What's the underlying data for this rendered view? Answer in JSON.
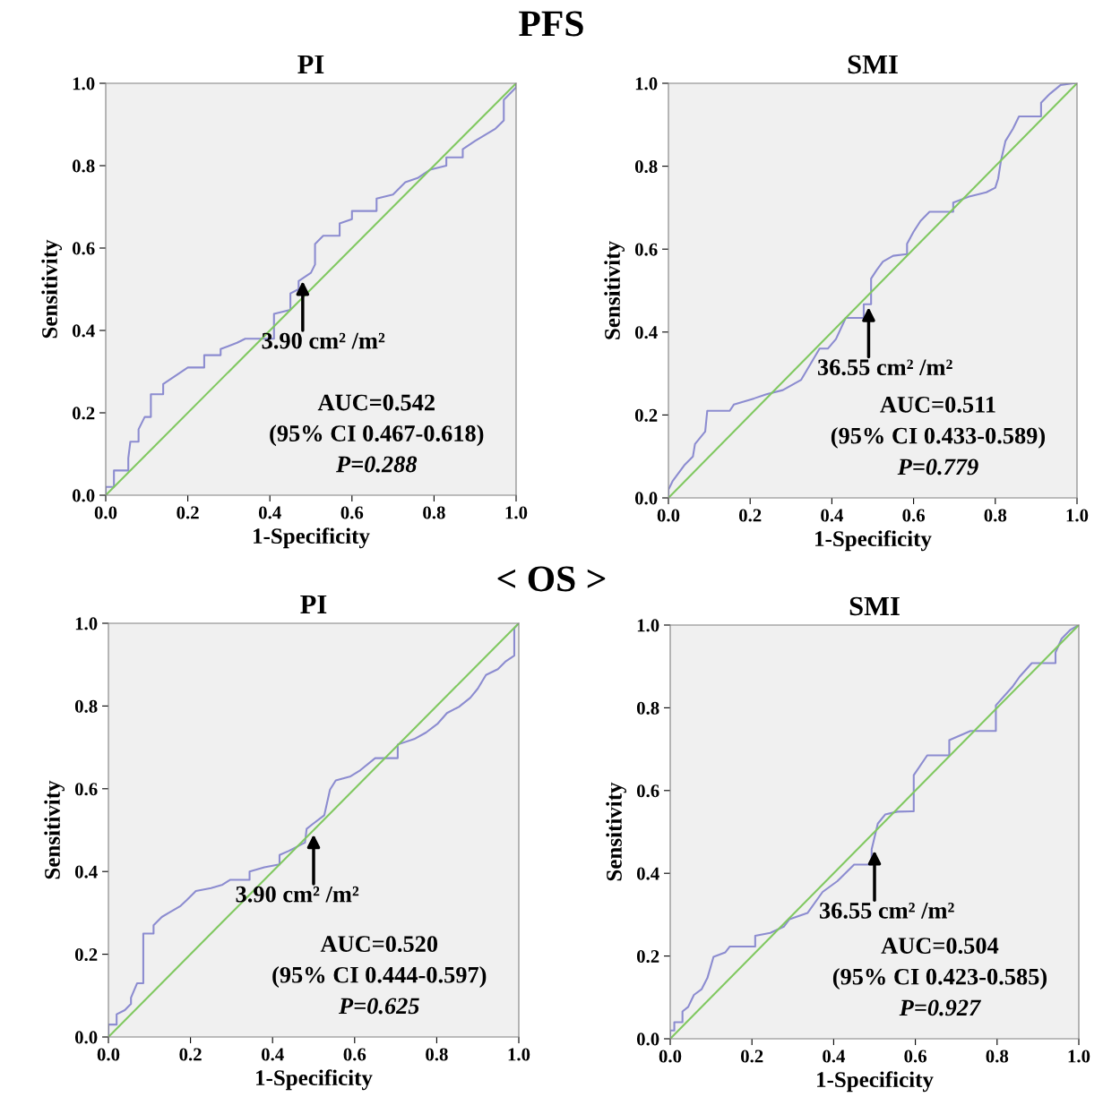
{
  "chart_data": [
    {
      "type": "other",
      "title": "PFS"
    },
    {
      "type": "line",
      "title": "PI",
      "xlabel": "1-Specificity",
      "ylabel": "Sensitivity",
      "xlim": [
        0,
        1
      ],
      "ylim": [
        0,
        1
      ],
      "xticks": [
        {
          "value": 0,
          "label": "0.0"
        },
        {
          "value": 0.2,
          "label": "0.2"
        },
        {
          "value": 0.4,
          "label": "0.4"
        },
        {
          "value": 0.6,
          "label": "0.6"
        },
        {
          "value": 0.8,
          "label": "0.8"
        },
        {
          "value": 1,
          "label": "1.0"
        }
      ],
      "yticks": [
        {
          "value": 0,
          "label": "0.0"
        },
        {
          "value": 0.2,
          "label": "0.2"
        },
        {
          "value": 0.4,
          "label": "0.4"
        },
        {
          "value": 0.6,
          "label": "0.6"
        },
        {
          "value": 0.8,
          "label": "0.8"
        },
        {
          "value": 1,
          "label": "1.0"
        }
      ],
      "grid": false,
      "legend": false,
      "series": [
        {
          "color": "#8c8cd0",
          "x": [
            0,
            0,
            0.02,
            0.02,
            0.055,
            0.055,
            0.06,
            0.08,
            0.08,
            0.095,
            0.11,
            0.11,
            0.14,
            0.14,
            0.17,
            0.2,
            0.24,
            0.24,
            0.28,
            0.28,
            0.32,
            0.34,
            0.41,
            0.41,
            0.45,
            0.45,
            0.47,
            0.47,
            0.5,
            0.51,
            0.51,
            0.53,
            0.57,
            0.57,
            0.6,
            0.6,
            0.66,
            0.66,
            0.7,
            0.73,
            0.76,
            0.79,
            0.83,
            0.83,
            0.87,
            0.87,
            0.9,
            0.95,
            0.97,
            0.97,
            1,
            1
          ],
          "values": [
            0,
            0.02,
            0.02,
            0.06,
            0.06,
            0.09,
            0.13,
            0.13,
            0.16,
            0.19,
            0.19,
            0.245,
            0.245,
            0.27,
            0.29,
            0.31,
            0.31,
            0.34,
            0.34,
            0.355,
            0.37,
            0.38,
            0.38,
            0.44,
            0.45,
            0.49,
            0.5,
            0.52,
            0.54,
            0.56,
            0.61,
            0.63,
            0.63,
            0.66,
            0.67,
            0.69,
            0.69,
            0.72,
            0.73,
            0.76,
            0.77,
            0.79,
            0.8,
            0.82,
            0.82,
            0.84,
            0.86,
            0.89,
            0.91,
            0.96,
            0.99,
            1
          ]
        },
        {
          "color": "#80c860",
          "x": [
            0,
            1
          ],
          "values": [
            0,
            1
          ]
        }
      ],
      "annotations": [
        "AUC=0.542",
        "(95% CI 0.467-0.618)",
        "P=0.288",
        {
          "text": "3.90 cm² /m²",
          "x": 0.48,
          "y": 0.52
        }
      ]
    },
    {
      "type": "line",
      "title": "SMI",
      "xlabel": "1-Specificity",
      "ylabel": "Sensitivity",
      "xlim": [
        0,
        1
      ],
      "ylim": [
        0,
        1
      ],
      "xticks": [
        {
          "value": 0,
          "label": "0.0"
        },
        {
          "value": 0.2,
          "label": "0.2"
        },
        {
          "value": 0.4,
          "label": "0.4"
        },
        {
          "value": 0.6,
          "label": "0.6"
        },
        {
          "value": 0.8,
          "label": "0.8"
        },
        {
          "value": 1,
          "label": "1.0"
        }
      ],
      "yticks": [
        {
          "value": 0,
          "label": "0.0"
        },
        {
          "value": 0.2,
          "label": "0.2"
        },
        {
          "value": 0.4,
          "label": "0.4"
        },
        {
          "value": 0.6,
          "label": "0.6"
        },
        {
          "value": 0.8,
          "label": "0.8"
        },
        {
          "value": 1,
          "label": "1.0"
        }
      ],
      "grid": false,
      "legend": false,
      "series": [
        {
          "color": "#8c8cd0",
          "x": [
            0,
            0,
            0.01,
            0.025,
            0.04,
            0.06,
            0.065,
            0.09,
            0.095,
            0.15,
            0.16,
            0.21,
            0.24,
            0.28,
            0.325,
            0.37,
            0.39,
            0.41,
            0.434,
            0.478,
            0.478,
            0.496,
            0.496,
            0.51,
            0.525,
            0.55,
            0.584,
            0.584,
            0.6,
            0.617,
            0.639,
            0.697,
            0.697,
            0.734,
            0.778,
            0.8,
            0.807,
            0.814,
            0.825,
            0.843,
            0.858,
            0.912,
            0.912,
            0.934,
            0.96,
            0.99,
            1
          ],
          "values": [
            0,
            0.02,
            0.04,
            0.06,
            0.08,
            0.1,
            0.13,
            0.16,
            0.21,
            0.21,
            0.225,
            0.24,
            0.25,
            0.26,
            0.285,
            0.36,
            0.36,
            0.383,
            0.434,
            0.434,
            0.467,
            0.467,
            0.529,
            0.55,
            0.57,
            0.584,
            0.588,
            0.613,
            0.642,
            0.668,
            0.69,
            0.69,
            0.712,
            0.726,
            0.737,
            0.748,
            0.77,
            0.814,
            0.861,
            0.89,
            0.92,
            0.92,
            0.953,
            0.975,
            0.996,
            1,
            1
          ]
        },
        {
          "color": "#80c860",
          "x": [
            0,
            1
          ],
          "values": [
            0,
            1
          ]
        }
      ],
      "annotations": [
        "AUC=0.511",
        "(95% CI 0.433-0.589)",
        "P=0.779",
        {
          "text": "36.55 cm² /m²",
          "x": 0.49,
          "y": 0.46
        }
      ]
    },
    {
      "type": "other",
      "title": "< OS >"
    },
    {
      "type": "line",
      "title": "PI",
      "xlabel": "1-Specificity",
      "ylabel": "Sensitivity",
      "xlim": [
        0,
        1
      ],
      "ylim": [
        0,
        1
      ],
      "xticks": [
        {
          "value": 0,
          "label": "0.0"
        },
        {
          "value": 0.2,
          "label": "0.2"
        },
        {
          "value": 0.4,
          "label": "0.4"
        },
        {
          "value": 0.6,
          "label": "0.6"
        },
        {
          "value": 0.8,
          "label": "0.8"
        },
        {
          "value": 1,
          "label": "1.0"
        }
      ],
      "yticks": [
        {
          "value": 0,
          "label": "0.0"
        },
        {
          "value": 0.2,
          "label": "0.2"
        },
        {
          "value": 0.4,
          "label": "0.4"
        },
        {
          "value": 0.6,
          "label": "0.6"
        },
        {
          "value": 0.8,
          "label": "0.8"
        },
        {
          "value": 1,
          "label": "1.0"
        }
      ],
      "grid": false,
      "legend": false,
      "series": [
        {
          "color": "#8c8cd0",
          "x": [
            0,
            0,
            0.02,
            0.02,
            0.04,
            0.055,
            0.055,
            0.07,
            0.085,
            0.085,
            0.11,
            0.11,
            0.13,
            0.147,
            0.176,
            0.19,
            0.213,
            0.25,
            0.278,
            0.297,
            0.344,
            0.344,
            0.38,
            0.417,
            0.417,
            0.44,
            0.479,
            0.483,
            0.497,
            0.526,
            0.54,
            0.554,
            0.59,
            0.614,
            0.65,
            0.705,
            0.705,
            0.745,
            0.774,
            0.803,
            0.825,
            0.854,
            0.882,
            0.9,
            0.92,
            0.949,
            0.967,
            0.989,
            0.989,
            1
          ],
          "values": [
            0,
            0.03,
            0.03,
            0.055,
            0.065,
            0.08,
            0.095,
            0.13,
            0.13,
            0.25,
            0.25,
            0.27,
            0.29,
            0.3,
            0.317,
            0.33,
            0.353,
            0.36,
            0.368,
            0.38,
            0.38,
            0.4,
            0.41,
            0.417,
            0.44,
            0.45,
            0.47,
            0.503,
            0.514,
            0.536,
            0.598,
            0.62,
            0.63,
            0.645,
            0.674,
            0.674,
            0.707,
            0.72,
            0.736,
            0.758,
            0.783,
            0.798,
            0.82,
            0.842,
            0.875,
            0.889,
            0.907,
            0.922,
            0.988,
            1
          ]
        },
        {
          "color": "#80c860",
          "x": [
            0,
            1
          ],
          "values": [
            0,
            1
          ]
        }
      ],
      "annotations": [
        "AUC=0.520",
        "(95% CI 0.444-0.597)",
        "P=0.625",
        {
          "text": "3.90 cm² /m²",
          "x": 0.5,
          "y": 0.49
        }
      ]
    },
    {
      "type": "line",
      "title": "SMI",
      "xlabel": "1-Specificity",
      "ylabel": "Sensitivity",
      "xlim": [
        0,
        1
      ],
      "ylim": [
        0,
        1
      ],
      "xticks": [
        {
          "value": 0,
          "label": "0.0"
        },
        {
          "value": 0.2,
          "label": "0.2"
        },
        {
          "value": 0.4,
          "label": "0.4"
        },
        {
          "value": 0.6,
          "label": "0.6"
        },
        {
          "value": 0.8,
          "label": "0.8"
        },
        {
          "value": 1,
          "label": "1.0"
        }
      ],
      "yticks": [
        {
          "value": 0,
          "label": "0.0"
        },
        {
          "value": 0.2,
          "label": "0.2"
        },
        {
          "value": 0.4,
          "label": "0.4"
        },
        {
          "value": 0.6,
          "label": "0.6"
        },
        {
          "value": 0.8,
          "label": "0.8"
        },
        {
          "value": 1,
          "label": "1.0"
        }
      ],
      "grid": false,
      "legend": false,
      "series": [
        {
          "color": "#8c8cd0",
          "x": [
            0,
            0,
            0.01,
            0.01,
            0.03,
            0.03,
            0.044,
            0.058,
            0.077,
            0.091,
            0.106,
            0.135,
            0.146,
            0.208,
            0.208,
            0.245,
            0.278,
            0.292,
            0.336,
            0.373,
            0.409,
            0.45,
            0.493,
            0.493,
            0.508,
            0.526,
            0.556,
            0.596,
            0.596,
            0.629,
            0.683,
            0.683,
            0.735,
            0.797,
            0.797,
            0.837,
            0.855,
            0.885,
            0.943,
            0.943,
            0.958,
            0.98,
            1
          ],
          "values": [
            0,
            0.02,
            0.02,
            0.04,
            0.04,
            0.066,
            0.077,
            0.106,
            0.12,
            0.147,
            0.198,
            0.209,
            0.223,
            0.223,
            0.249,
            0.256,
            0.271,
            0.289,
            0.304,
            0.355,
            0.381,
            0.421,
            0.421,
            0.458,
            0.52,
            0.542,
            0.549,
            0.55,
            0.637,
            0.685,
            0.685,
            0.722,
            0.744,
            0.744,
            0.806,
            0.85,
            0.875,
            0.908,
            0.908,
            0.934,
            0.967,
            0.989,
            1
          ]
        },
        {
          "color": "#80c860",
          "x": [
            0,
            1
          ],
          "values": [
            0,
            1
          ]
        }
      ],
      "annotations": [
        "AUC=0.504",
        "(95% CI 0.423-0.585)",
        "P=0.927",
        {
          "text": "36.55 cm² /m²",
          "x": 0.5,
          "y": 0.455
        }
      ]
    }
  ]
}
